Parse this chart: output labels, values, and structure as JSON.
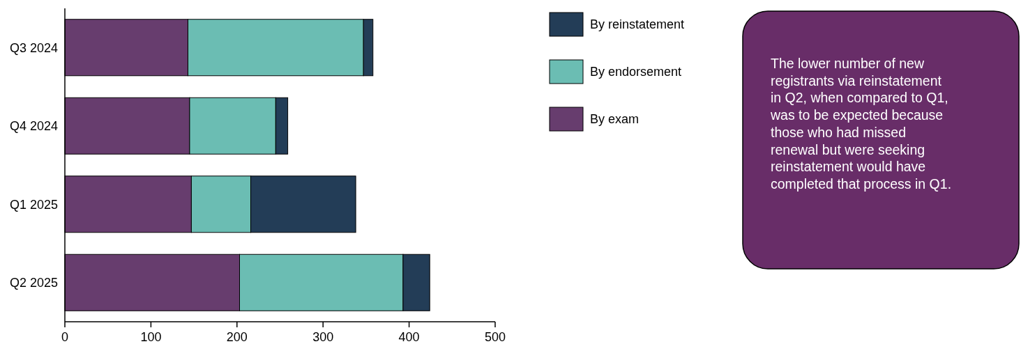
{
  "chart_data": {
    "type": "bar",
    "orientation": "horizontal",
    "stacked": true,
    "categories": [
      "Q3 2024",
      "Q4 2024",
      "Q1 2025",
      "Q2 2025"
    ],
    "series": [
      {
        "name": "By exam",
        "color": "#673d6e",
        "values": [
          143,
          145,
          147,
          203
        ]
      },
      {
        "name": "By endorsement",
        "color": "#6bbdb3",
        "values": [
          204,
          100,
          69,
          190
        ]
      },
      {
        "name": "By reinstatement",
        "color": "#233d57",
        "values": [
          11,
          14,
          122,
          31
        ]
      }
    ],
    "xlim": [
      0,
      500
    ],
    "xticks": [
      0,
      100,
      200,
      300,
      400,
      500
    ],
    "grid": false,
    "legend": "right",
    "annotations": [
      "The lower number of new registrants via reinstatement in Q2, when compared to Q1, was to be expected because those who had missed renewal but were seeking reinstatement would have completed that process in Q1."
    ]
  }
}
